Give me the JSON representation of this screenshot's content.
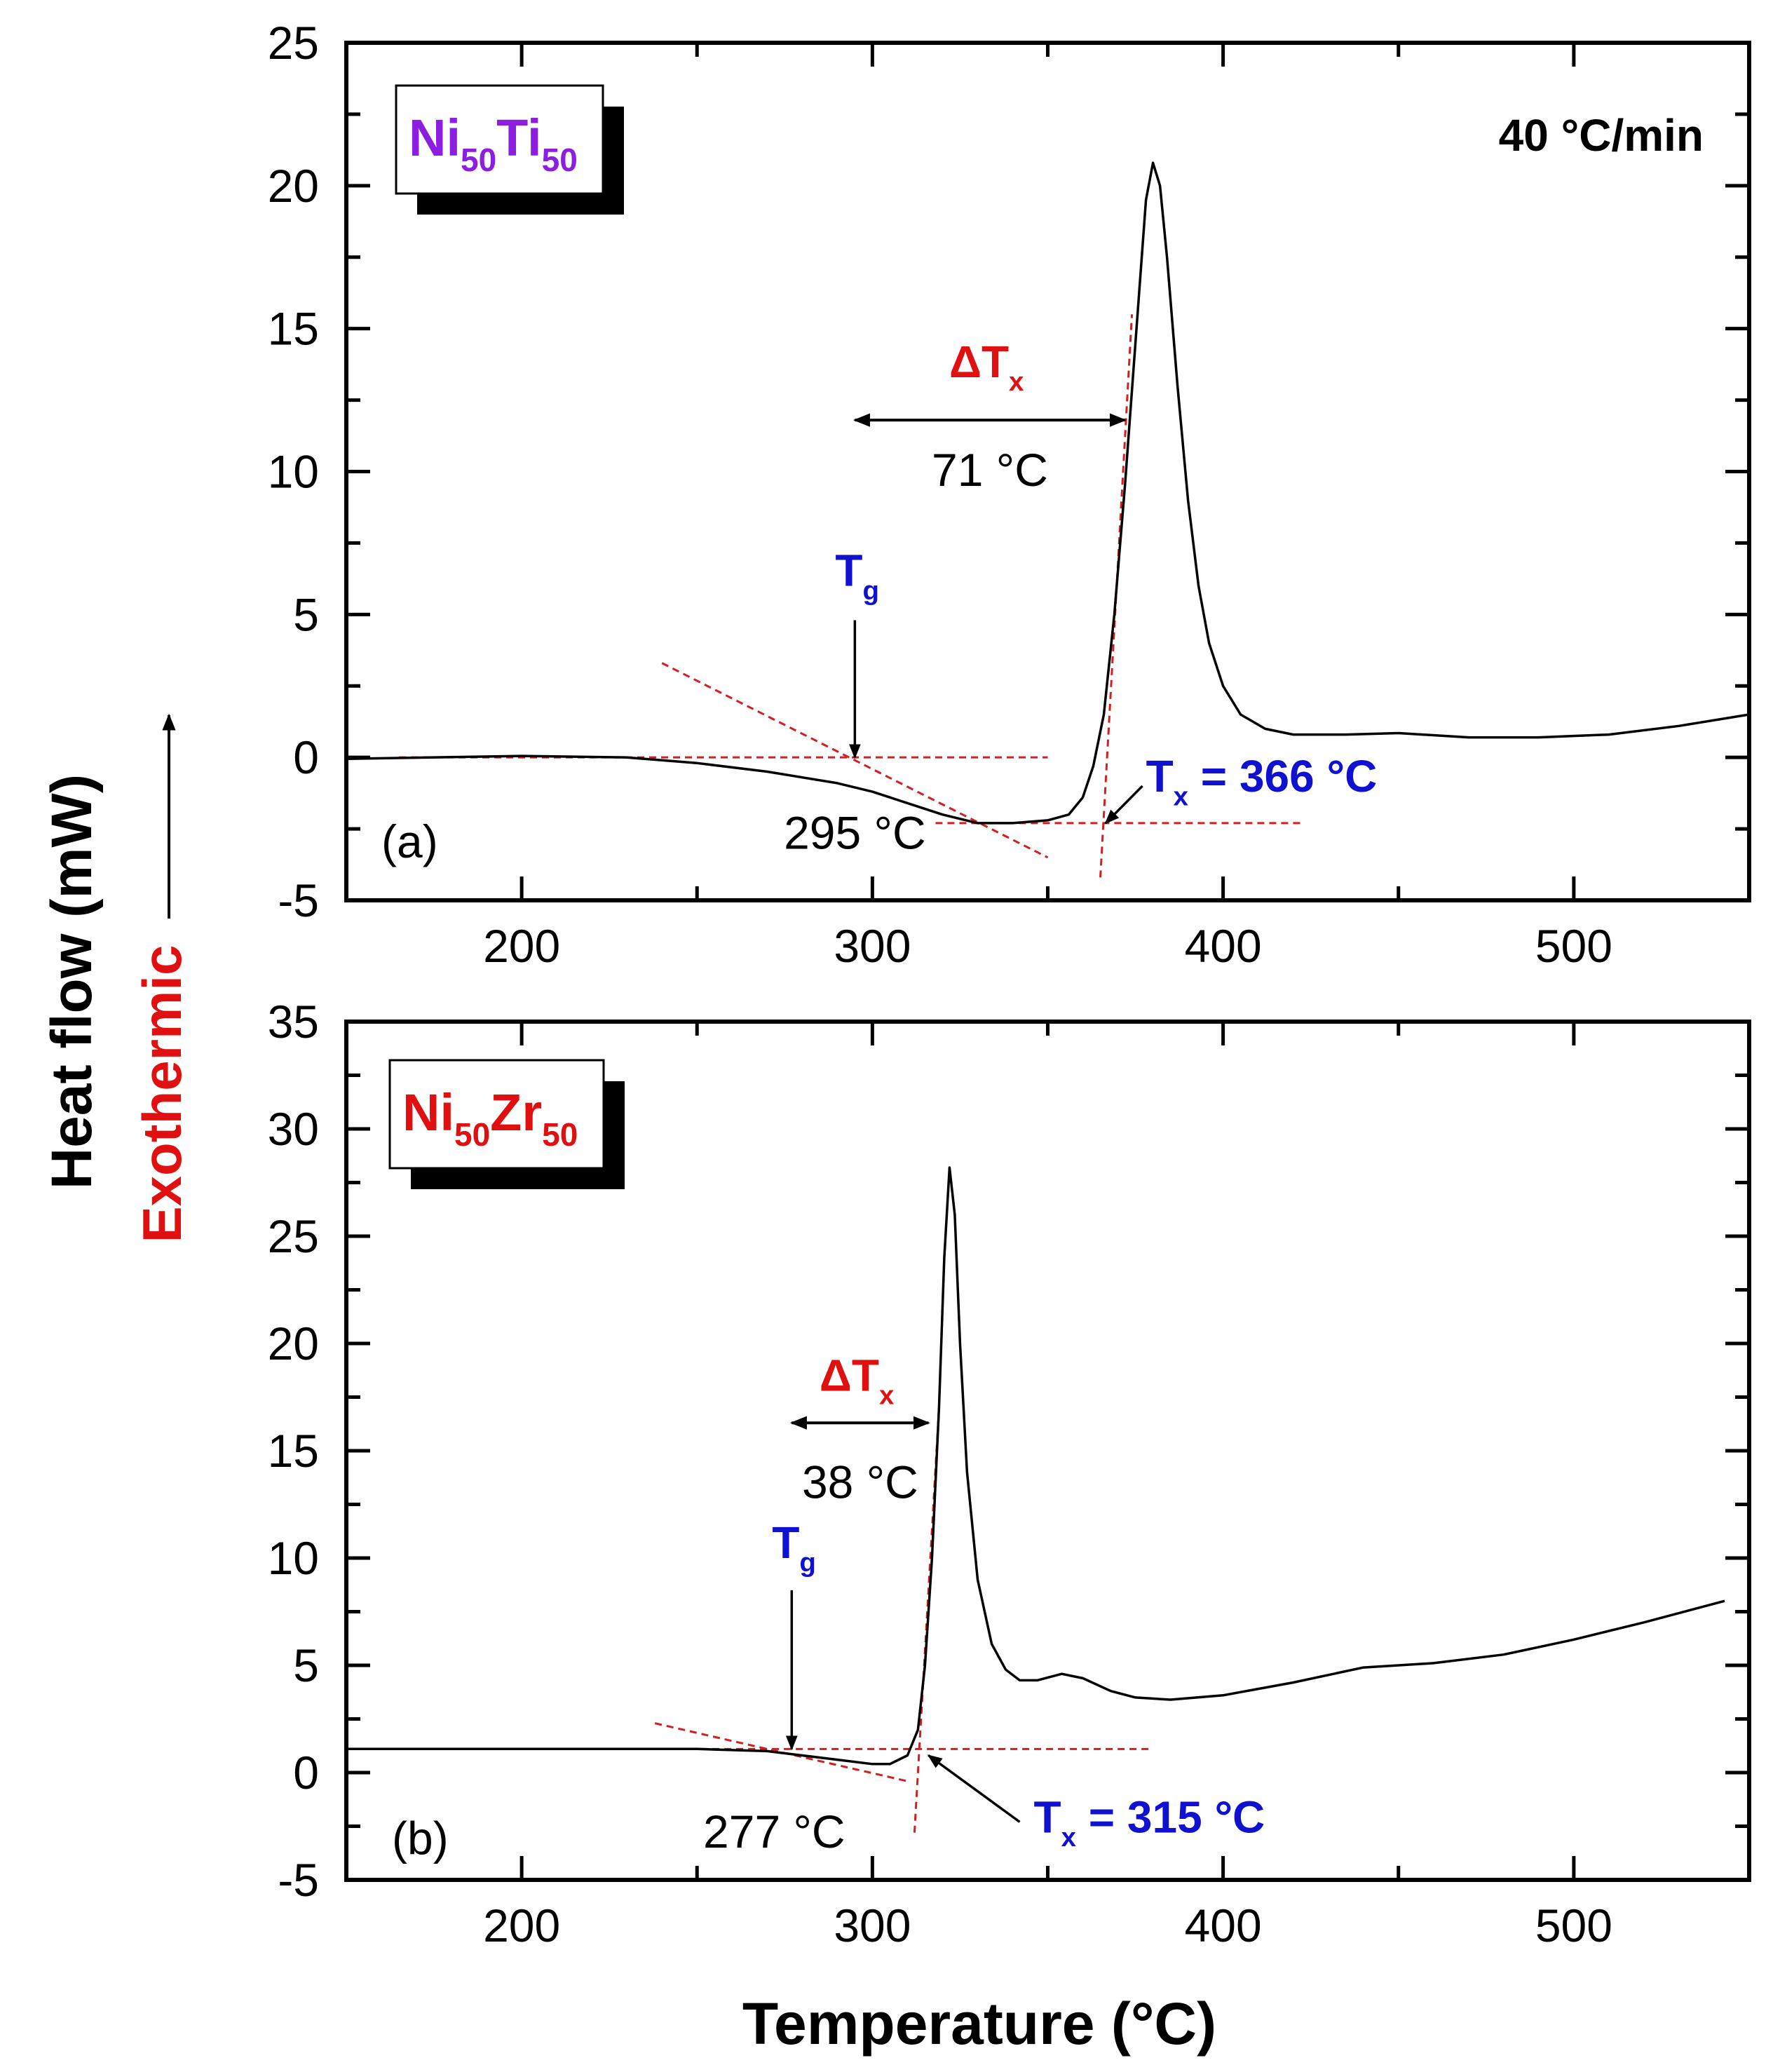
{
  "chart_data": [
    {
      "type": "line",
      "panel_label": "(a)",
      "sample_formula": [
        {
          "t": "Ni"
        },
        {
          "t": "50",
          "sub": true
        },
        {
          "t": "Ti"
        },
        {
          "t": "50",
          "sub": true
        }
      ],
      "sample_color": "#8b1ee0",
      "heating_rate": "40 °C/min",
      "xlabel": "",
      "ylabel": "Heat flow (mW)",
      "xlim": [
        150,
        550
      ],
      "ylim": [
        -5,
        25
      ],
      "xticks": [
        200,
        300,
        400,
        500
      ],
      "yticks": [
        -5,
        0,
        5,
        10,
        15,
        20,
        25
      ],
      "series": [
        {
          "name": "Ni50Ti50",
          "x": [
            150,
            200,
            230,
            250,
            270,
            290,
            300,
            310,
            320,
            330,
            340,
            350,
            356,
            360,
            363,
            366,
            369,
            372,
            375,
            378,
            380,
            382,
            384,
            387,
            390,
            393,
            396,
            400,
            405,
            412,
            420,
            435,
            450,
            470,
            490,
            510,
            530,
            550
          ],
          "y": [
            -0.05,
            0.05,
            0.0,
            -0.2,
            -0.5,
            -0.9,
            -1.2,
            -1.6,
            -2.0,
            -2.3,
            -2.3,
            -2.2,
            -2.0,
            -1.4,
            -0.3,
            1.5,
            5,
            9.5,
            14.5,
            19.5,
            20.8,
            20,
            17.5,
            13,
            9,
            6,
            4,
            2.5,
            1.5,
            1.0,
            0.8,
            0.8,
            0.85,
            0.7,
            0.7,
            0.8,
            1.1,
            1.5
          ]
        }
      ],
      "annotations": {
        "tg_label": "T",
        "tg_sub": "g",
        "tg_value": "295 °C",
        "tx_label": "T",
        "tx_sub": "x",
        "tx_value": " = 366 °C",
        "dtx_label": "ΔT",
        "dtx_sub": "x",
        "dtx_value": "71 °C",
        "tg": 295,
        "tx": 366
      }
    },
    {
      "type": "line",
      "panel_label": "(b)",
      "sample_formula": [
        {
          "t": "Ni"
        },
        {
          "t": "50",
          "sub": true
        },
        {
          "t": "Zr"
        },
        {
          "t": "50",
          "sub": true
        }
      ],
      "sample_color": "#e01010",
      "xlabel": "Temperature (°C)",
      "ylabel": "Heat flow (mW)",
      "xlim": [
        150,
        550
      ],
      "ylim": [
        -5,
        35
      ],
      "xticks": [
        200,
        300,
        400,
        500
      ],
      "yticks": [
        -5,
        0,
        5,
        10,
        15,
        20,
        25,
        30,
        35
      ],
      "series": [
        {
          "name": "Ni50Zr50",
          "x": [
            150,
            200,
            250,
            270,
            280,
            290,
            300,
            305,
            310,
            313,
            315,
            317,
            319,
            320.5,
            322,
            323.5,
            325,
            327,
            330,
            334,
            338,
            342,
            347,
            354,
            360,
            368,
            375,
            385,
            400,
            420,
            440,
            460,
            480,
            500,
            520,
            543
          ],
          "y": [
            1.1,
            1.1,
            1.1,
            1.0,
            0.8,
            0.6,
            0.4,
            0.4,
            0.8,
            2,
            5,
            10,
            17,
            24,
            28.2,
            26,
            20,
            14,
            9,
            6,
            4.8,
            4.3,
            4.3,
            4.6,
            4.4,
            3.8,
            3.5,
            3.4,
            3.6,
            4.2,
            4.9,
            5.1,
            5.5,
            6.2,
            7.0,
            8.0
          ]
        }
      ],
      "annotations": {
        "tg_label": "T",
        "tg_sub": "g",
        "tg_value": "277 °C",
        "tx_label": "T",
        "tx_sub": "x",
        "tx_value": " = 315 °C",
        "dtx_label": "ΔT",
        "dtx_sub": "x",
        "dtx_value": "38 °C",
        "tg": 277,
        "tx": 315
      }
    }
  ],
  "shared": {
    "ylabel": "Heat flow (mW)",
    "exo_label": "Exothermic",
    "xlabel": "Temperature (°C)",
    "colors": {
      "curve": "#000000",
      "tangent": "#d02020",
      "tg": "#1010d0",
      "dtx": "#e01010",
      "exo": "#e01010"
    }
  }
}
